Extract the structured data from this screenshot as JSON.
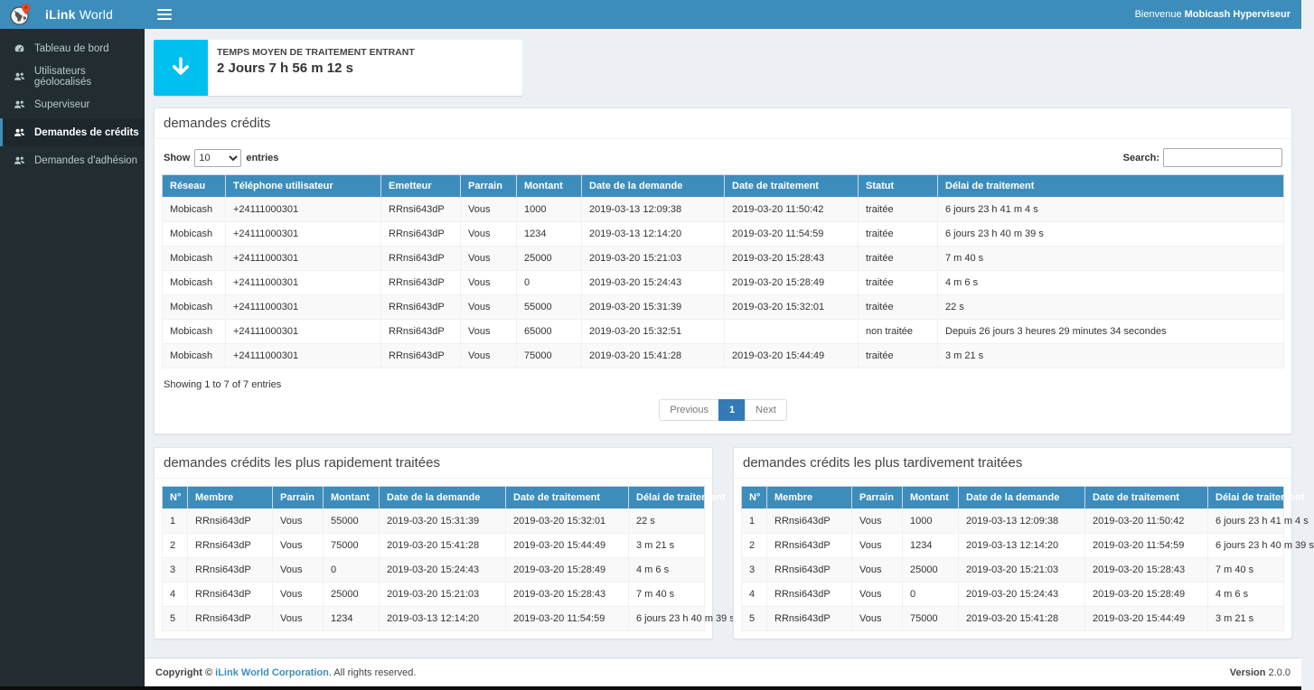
{
  "app": {
    "brand_bold": "iLink",
    "brand_light": " World",
    "welcome_prefix": "Bienvenue ",
    "welcome_user": "Mobicash Hyperviseur"
  },
  "sidebar": {
    "items": [
      {
        "label": "Tableau de bord",
        "icon": "dashboard-icon",
        "active": false
      },
      {
        "label": "Utilisateurs géolocalisés",
        "icon": "users-icon",
        "active": false
      },
      {
        "label": "Superviseur",
        "icon": "users-icon",
        "active": false
      },
      {
        "label": "Demandes de crédits",
        "icon": "users-icon",
        "active": true
      },
      {
        "label": "Demandes d'adhésion",
        "icon": "users-icon",
        "active": false
      }
    ]
  },
  "info_box": {
    "title": "TEMPS MOYEN DE TRAITEMENT ENTRANT",
    "value": "2 Jours 7 h 56 m 12 s",
    "icon": "arrow-down-icon",
    "icon_bg": "#00c0ef"
  },
  "credits_table": {
    "box_title": "demandes crédits",
    "show_label": "Show",
    "page_length": "10",
    "entries_label": "entries",
    "search_label": "Search:",
    "search_value": "",
    "columns": [
      "Réseau",
      "Téléphone utilisateur",
      "Emetteur",
      "Parrain",
      "Montant",
      "Date de la demande",
      "Date de traitement",
      "Statut",
      "Délai de traitement"
    ],
    "rows": [
      [
        "Mobicash",
        "+24111000301",
        "RRnsi643dP",
        "Vous",
        "1000",
        "2019-03-13 12:09:38",
        "2019-03-20 11:50:42",
        "traitée",
        "6 jours 23 h 41 m 4 s"
      ],
      [
        "Mobicash",
        "+24111000301",
        "RRnsi643dP",
        "Vous",
        "1234",
        "2019-03-13 12:14:20",
        "2019-03-20 11:54:59",
        "traitée",
        "6 jours 23 h 40 m 39 s"
      ],
      [
        "Mobicash",
        "+24111000301",
        "RRnsi643dP",
        "Vous",
        "25000",
        "2019-03-20 15:21:03",
        "2019-03-20 15:28:43",
        "traitée",
        "7 m 40 s"
      ],
      [
        "Mobicash",
        "+24111000301",
        "RRnsi643dP",
        "Vous",
        "0",
        "2019-03-20 15:24:43",
        "2019-03-20 15:28:49",
        "traitée",
        "4 m 6 s"
      ],
      [
        "Mobicash",
        "+24111000301",
        "RRnsi643dP",
        "Vous",
        "55000",
        "2019-03-20 15:31:39",
        "2019-03-20 15:32:01",
        "traitée",
        "22 s"
      ],
      [
        "Mobicash",
        "+24111000301",
        "RRnsi643dP",
        "Vous",
        "65000",
        "2019-03-20 15:32:51",
        "",
        "non traitée",
        "Depuis 26 jours 3 heures 29 minutes 34 secondes"
      ],
      [
        "Mobicash",
        "+24111000301",
        "RRnsi643dP",
        "Vous",
        "75000",
        "2019-03-20 15:41:28",
        "2019-03-20 15:44:49",
        "traitée",
        "3 m 21 s"
      ]
    ],
    "info": "Showing 1 to 7 of 7 entries",
    "pagination": {
      "previous": "Previous",
      "page": "1",
      "next": "Next"
    }
  },
  "fastest_table": {
    "box_title": "demandes crédits les plus rapidement traitées",
    "columns": [
      "N°",
      "Membre",
      "Parrain",
      "Montant",
      "Date de la demande",
      "Date de traitement",
      "Délai de traitement"
    ],
    "rows": [
      [
        "1",
        "RRnsi643dP",
        "Vous",
        "55000",
        "2019-03-20 15:31:39",
        "2019-03-20 15:32:01",
        "22 s"
      ],
      [
        "2",
        "RRnsi643dP",
        "Vous",
        "75000",
        "2019-03-20 15:41:28",
        "2019-03-20 15:44:49",
        "3 m 21 s"
      ],
      [
        "3",
        "RRnsi643dP",
        "Vous",
        "0",
        "2019-03-20 15:24:43",
        "2019-03-20 15:28:49",
        "4 m 6 s"
      ],
      [
        "4",
        "RRnsi643dP",
        "Vous",
        "25000",
        "2019-03-20 15:21:03",
        "2019-03-20 15:28:43",
        "7 m 40 s"
      ],
      [
        "5",
        "RRnsi643dP",
        "Vous",
        "1234",
        "2019-03-13 12:14:20",
        "2019-03-20 11:54:59",
        "6 jours 23 h 40 m 39 s"
      ]
    ]
  },
  "slowest_table": {
    "box_title": "demandes crédits les plus tardivement traitées",
    "columns": [
      "N°",
      "Membre",
      "Parrain",
      "Montant",
      "Date de la demande",
      "Date de traitement",
      "Délai de traitement"
    ],
    "rows": [
      [
        "1",
        "RRnsi643dP",
        "Vous",
        "1000",
        "2019-03-13 12:09:38",
        "2019-03-20 11:50:42",
        "6 jours 23 h 41 m 4 s"
      ],
      [
        "2",
        "RRnsi643dP",
        "Vous",
        "1234",
        "2019-03-13 12:14:20",
        "2019-03-20 11:54:59",
        "6 jours 23 h 40 m 39 s"
      ],
      [
        "3",
        "RRnsi643dP",
        "Vous",
        "25000",
        "2019-03-20 15:21:03",
        "2019-03-20 15:28:43",
        "7 m 40 s"
      ],
      [
        "4",
        "RRnsi643dP",
        "Vous",
        "0",
        "2019-03-20 15:24:43",
        "2019-03-20 15:28:49",
        "4 m 6 s"
      ],
      [
        "5",
        "RRnsi643dP",
        "Vous",
        "75000",
        "2019-03-20 15:41:28",
        "2019-03-20 15:44:49",
        "3 m 21 s"
      ]
    ]
  },
  "footer": {
    "copyright_prefix": "Copyright © ",
    "company": "iLink World Corporation",
    "copyright_suffix": ". All rights reserved.",
    "version_label": "Version ",
    "version": "2.0.0"
  },
  "colors": {
    "primary_blue": "#3c8dbc",
    "sidebar_dark": "#222d32",
    "sidebar_active": "#1e282c",
    "aqua": "#00c0ef",
    "content_bg": "#ecf0f5",
    "pagination_active": "#337ab7"
  }
}
